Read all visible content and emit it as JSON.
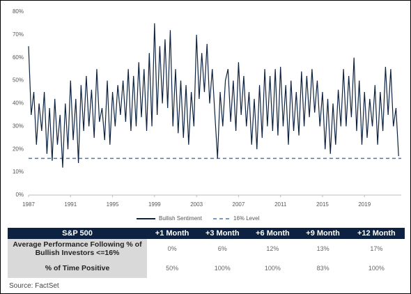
{
  "chart_data": {
    "type": "line",
    "x": [
      1987,
      1987.25,
      1987.5,
      1987.75,
      1988,
      1988.25,
      1988.5,
      1988.75,
      1989,
      1989.25,
      1989.5,
      1989.75,
      1990,
      1990.25,
      1990.5,
      1990.75,
      1991,
      1991.25,
      1991.5,
      1991.75,
      1992,
      1992.25,
      1992.5,
      1992.75,
      1993,
      1993.25,
      1993.5,
      1993.75,
      1994,
      1994.25,
      1994.5,
      1994.75,
      1995,
      1995.25,
      1995.5,
      1995.75,
      1996,
      1996.25,
      1996.5,
      1996.75,
      1997,
      1997.25,
      1997.5,
      1997.75,
      1998,
      1998.25,
      1998.5,
      1998.75,
      1999,
      1999.25,
      1999.5,
      1999.75,
      2000,
      2000.25,
      2000.5,
      2000.75,
      2001,
      2001.25,
      2001.5,
      2001.75,
      2002,
      2002.25,
      2002.5,
      2002.75,
      2003,
      2003.25,
      2003.5,
      2003.75,
      2004,
      2004.25,
      2004.5,
      2004.75,
      2005,
      2005.25,
      2005.5,
      2005.75,
      2006,
      2006.25,
      2006.5,
      2006.75,
      2007,
      2007.25,
      2007.5,
      2007.75,
      2008,
      2008.25,
      2008.5,
      2008.75,
      2009,
      2009.25,
      2009.5,
      2009.75,
      2010,
      2010.25,
      2010.5,
      2010.75,
      2011,
      2011.25,
      2011.5,
      2011.75,
      2012,
      2012.25,
      2012.5,
      2012.75,
      2013,
      2013.25,
      2013.5,
      2013.75,
      2014,
      2014.25,
      2014.5,
      2014.75,
      2015,
      2015.25,
      2015.5,
      2015.75,
      2016,
      2016.25,
      2016.5,
      2016.75,
      2017,
      2017.25,
      2017.5,
      2017.75,
      2018,
      2018.25,
      2018.5,
      2018.75,
      2019,
      2019.25,
      2019.5,
      2019.75,
      2020,
      2020.25,
      2020.5,
      2020.75,
      2021,
      2021.25,
      2021.5,
      2021.75,
      2022,
      2022.25
    ],
    "series": [
      {
        "name": "Bullish Sentiment",
        "color": "#0d2240",
        "values": [
          65,
          35,
          45,
          22,
          40,
          28,
          45,
          18,
          38,
          15,
          42,
          22,
          35,
          12,
          40,
          20,
          50,
          24,
          42,
          14,
          48,
          28,
          52,
          30,
          46,
          25,
          55,
          32,
          38,
          24,
          50,
          22,
          45,
          30,
          48,
          35,
          50,
          32,
          55,
          28,
          52,
          30,
          58,
          34,
          55,
          28,
          62,
          30,
          75,
          35,
          65,
          40,
          68,
          38,
          72,
          30,
          55,
          27,
          50,
          25,
          48,
          22,
          45,
          30,
          70,
          42,
          62,
          45,
          66,
          40,
          55,
          35,
          16,
          45,
          30,
          50,
          55,
          32,
          50,
          28,
          58,
          35,
          52,
          30,
          45,
          22,
          42,
          20,
          48,
          25,
          55,
          30,
          52,
          28,
          55,
          26,
          56,
          30,
          48,
          22,
          50,
          28,
          45,
          26,
          54,
          30,
          52,
          34,
          55,
          36,
          50,
          30,
          45,
          20,
          42,
          18,
          40,
          22,
          46,
          30,
          55,
          30,
          52,
          34,
          60,
          28,
          50,
          22,
          45,
          25,
          42,
          30,
          48,
          22,
          45,
          28,
          56,
          35,
          55,
          30,
          38,
          17
        ]
      }
    ],
    "reference_line": {
      "name": "16% Level",
      "value": 16,
      "color": "#4a78b0"
    },
    "xlim": [
      1987,
      2022.5
    ],
    "xticks": [
      1987,
      1991,
      1995,
      1999,
      2003,
      2007,
      2011,
      2015,
      2019
    ],
    "ylim": [
      0,
      80
    ],
    "yticks": [
      {
        "value": 0,
        "label": "0%"
      },
      {
        "value": 10,
        "label": "10%"
      },
      {
        "value": 20,
        "label": "20%"
      },
      {
        "value": 30,
        "label": "30%"
      },
      {
        "value": 40,
        "label": "40%"
      },
      {
        "value": 50,
        "label": "50%"
      },
      {
        "value": 60,
        "label": "60%"
      },
      {
        "value": 70,
        "label": "70%"
      },
      {
        "value": 80,
        "label": "80%"
      }
    ]
  },
  "table": {
    "header": [
      "S&P 500",
      "+1 Month",
      "+3 Month",
      "+6 Month",
      "+9 Month",
      "+12 Month"
    ],
    "rows": [
      [
        "Average Performance Following % of Bullish Investors <=16%",
        "0%",
        "6%",
        "12%",
        "13%",
        "17%"
      ],
      [
        "% of Time Positive",
        "50%",
        "100%",
        "100%",
        "83%",
        "100%"
      ]
    ]
  },
  "source": "Source: FactSet"
}
